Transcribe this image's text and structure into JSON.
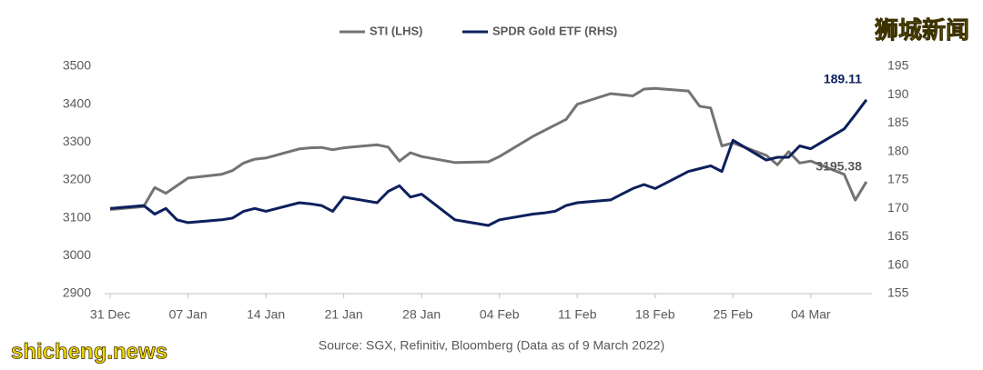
{
  "chart_data": {
    "type": "line",
    "source": "Source: SGX, Refinitiv, Bloomberg (Data as of 9 March 2022)",
    "watermarks": [
      "狮城新闻",
      "shicheng.news"
    ],
    "x": [
      0,
      3,
      4,
      5,
      6,
      7,
      10,
      11,
      12,
      13,
      14,
      17,
      18,
      19,
      20,
      21,
      24,
      25,
      26,
      27,
      28,
      31,
      34,
      35,
      38,
      39,
      40,
      41,
      42,
      45,
      46,
      47,
      48,
      49,
      52,
      53,
      54,
      55,
      56,
      59,
      60,
      61,
      62,
      63,
      66,
      67,
      68
    ],
    "xlim": [
      -0.5,
      68.5
    ],
    "xticks": [
      {
        "value": 0,
        "label": "31 Dec"
      },
      {
        "value": 7,
        "label": "07 Jan"
      },
      {
        "value": 14,
        "label": "14 Jan"
      },
      {
        "value": 21,
        "label": "21 Jan"
      },
      {
        "value": 28,
        "label": "28 Jan"
      },
      {
        "value": 35,
        "label": "04 Feb"
      },
      {
        "value": 42,
        "label": "11 Feb"
      },
      {
        "value": 49,
        "label": "18 Feb"
      },
      {
        "value": 56,
        "label": "25 Feb"
      },
      {
        "value": 63,
        "label": "04 Mar"
      }
    ],
    "ylim": [
      2900,
      3500
    ],
    "yticks": [
      2900,
      3000,
      3100,
      3200,
      3300,
      3400,
      3500
    ],
    "y2lim": [
      155,
      195
    ],
    "y2ticks": [
      155,
      160,
      165,
      170,
      175,
      180,
      185,
      190,
      195
    ],
    "series": [
      {
        "name": "STI (LHS)",
        "color": "#737373",
        "axis": "y",
        "values": [
          3122,
          3130,
          3180,
          3165,
          3185,
          3205,
          3215,
          3225,
          3245,
          3255,
          3258,
          3282,
          3285,
          3286,
          3280,
          3285,
          3293,
          3287,
          3250,
          3272,
          3262,
          3246,
          3248,
          3262,
          3315,
          3330,
          3345,
          3360,
          3400,
          3428,
          3425,
          3422,
          3440,
          3442,
          3435,
          3395,
          3390,
          3290,
          3298,
          3265,
          3240,
          3275,
          3245,
          3250,
          3215,
          3147,
          3195.38
        ]
      },
      {
        "name": "SPDR Gold ETF (RHS)",
        "color": "#0d1f5c",
        "axis": "y2",
        "values": [
          170,
          170.5,
          169,
          170,
          168,
          167.5,
          168,
          168.3,
          169.5,
          170,
          169.5,
          171,
          170.8,
          170.5,
          169.5,
          172,
          171,
          173,
          174,
          172,
          172.5,
          168,
          167,
          168,
          169,
          169.2,
          169.5,
          170.5,
          171,
          171.5,
          172.5,
          173.5,
          174.2,
          173.5,
          176.5,
          177,
          177.5,
          176.5,
          182,
          178.5,
          179,
          179,
          181,
          180.5,
          184,
          186.5,
          189.11
        ]
      }
    ]
  }
}
